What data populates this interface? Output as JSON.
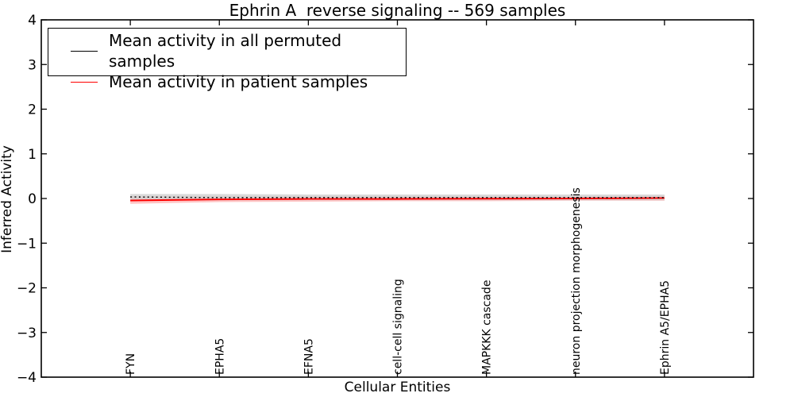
{
  "chart_data": {
    "type": "line",
    "title": "Ephrin A  reverse signaling -- 569 samples",
    "xlabel": "Cellular Entities",
    "ylabel": "Inferred Activity",
    "ylim": [
      -4,
      4
    ],
    "yticks": [
      4,
      3,
      2,
      1,
      0,
      -1,
      -2,
      -3,
      -4
    ],
    "ytick_labels": [
      "4",
      "3",
      "2",
      "1",
      "0",
      "−1",
      "−2",
      "−3",
      "−4"
    ],
    "categories": [
      "FYN",
      "EPHA5",
      "EFNA5",
      "cell-cell signaling",
      "MAPKKK cascade",
      "neuron projection morphogenesis",
      "Ephrin A5/EPHA5"
    ],
    "grid": false,
    "legend_position": "upper left",
    "series": [
      {
        "name": "Mean activity in all permuted samples",
        "color": "#000000",
        "style": "dotted",
        "values": [
          0.035,
          0.02,
          0.02,
          0.02,
          0.02,
          0.02,
          0.02
        ],
        "band_upper": [
          0.1,
          0.1,
          0.09,
          0.09,
          0.09,
          0.09,
          0.09
        ],
        "band_lower": [
          -0.04,
          -0.04,
          -0.04,
          -0.04,
          -0.04,
          -0.04,
          -0.04
        ],
        "band_color": "#cfcfcf"
      },
      {
        "name": "Mean activity in patient samples",
        "color": "#ff0000",
        "style": "solid",
        "values": [
          -0.045,
          -0.02,
          -0.01,
          -0.01,
          -0.005,
          0.0,
          0.01
        ],
        "band_upper": [
          0.05,
          0.05,
          0.05,
          0.05,
          0.05,
          0.05,
          0.06
        ],
        "band_lower": [
          -0.12,
          -0.08,
          -0.07,
          -0.06,
          -0.06,
          -0.05,
          -0.05
        ],
        "band_color": "#ff9e9e"
      }
    ]
  }
}
